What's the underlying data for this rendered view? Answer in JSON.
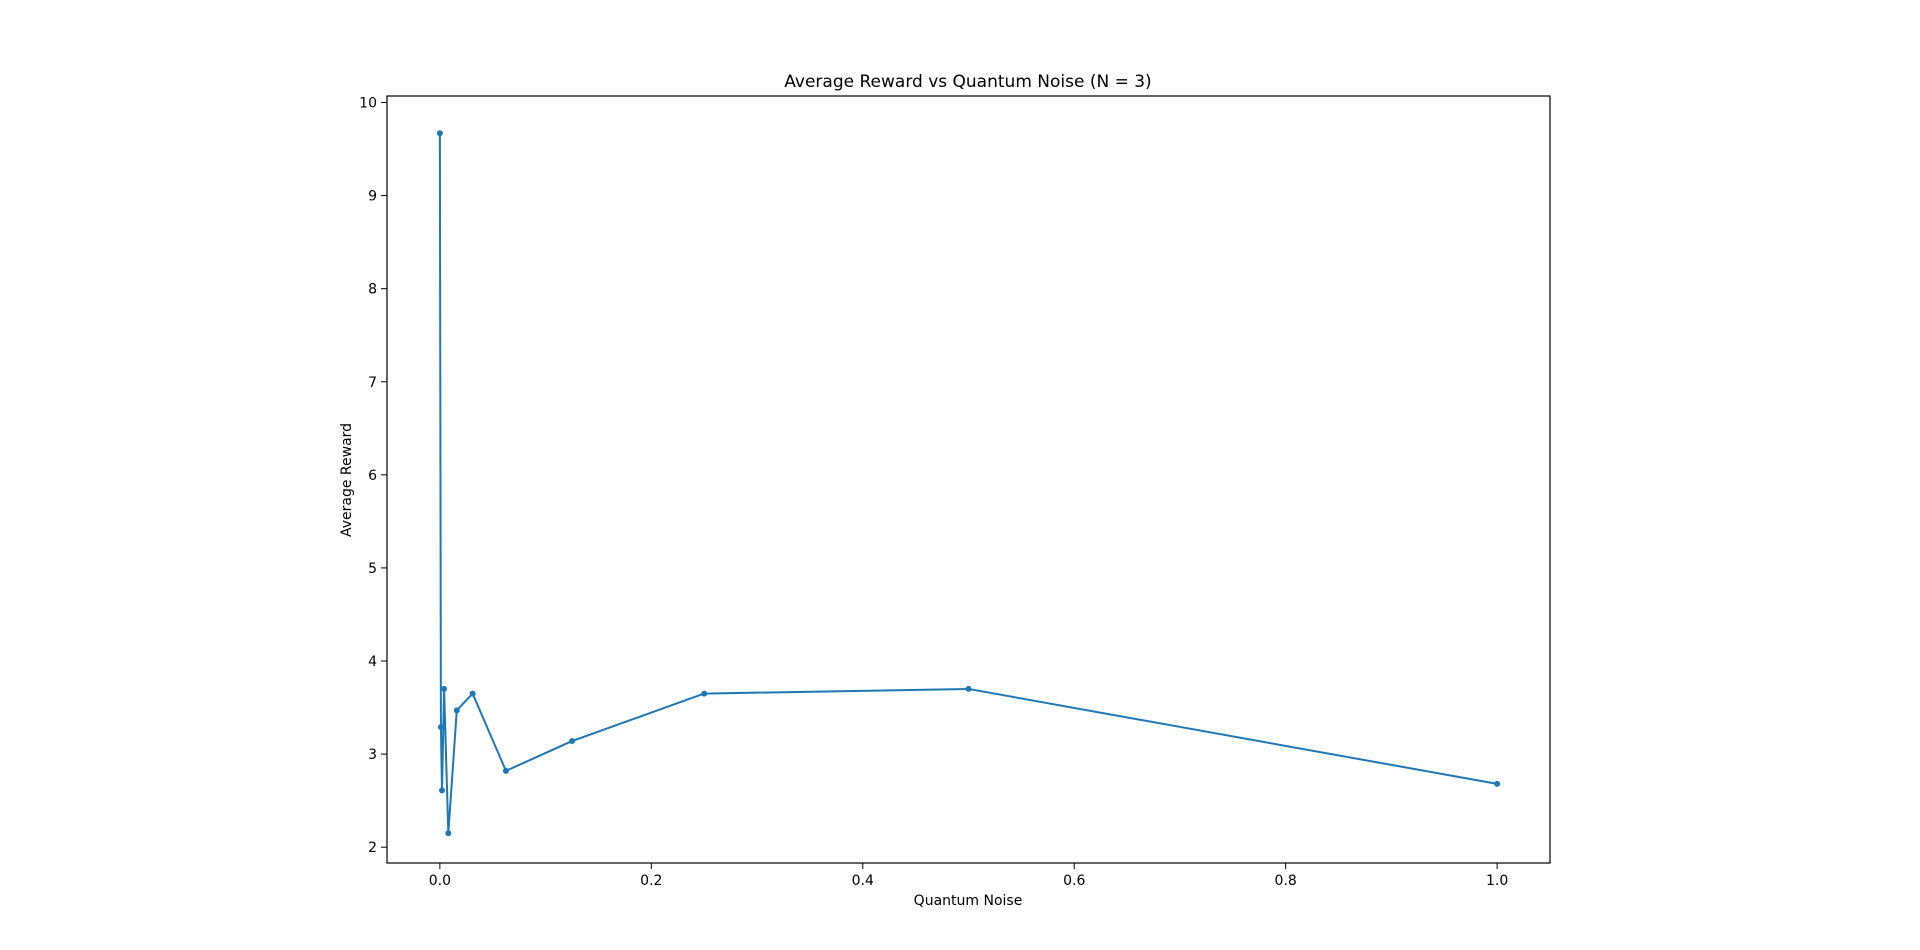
{
  "chart_data": {
    "type": "line",
    "title": "Average Reward vs Quantum Noise (N = 3)",
    "xlabel": "Quantum Noise",
    "ylabel": "Average Reward",
    "xlim": [
      -0.05,
      1.05
    ],
    "ylim": [
      1.83,
      10.07
    ],
    "x_ticks": [
      0.0,
      0.2,
      0.4,
      0.6,
      0.8,
      1.0
    ],
    "y_ticks": [
      2,
      3,
      4,
      5,
      6,
      7,
      8,
      9,
      10
    ],
    "x_tick_labels": [
      "0.0",
      "0.2",
      "0.4",
      "0.6",
      "0.8",
      "1.0"
    ],
    "y_tick_labels": [
      "2",
      "3",
      "4",
      "5",
      "6",
      "7",
      "8",
      "9",
      "10"
    ],
    "grid": false,
    "legend": "none",
    "series": [
      {
        "color": "#1f77b4",
        "marker": "circle",
        "x": [
          0.0,
          0.001,
          0.002,
          0.004,
          0.008,
          0.016,
          0.031,
          0.0625,
          0.125,
          0.25,
          0.5,
          1.0
        ],
        "y": [
          9.67,
          3.29,
          2.61,
          3.7,
          2.15,
          3.47,
          3.65,
          2.82,
          3.14,
          3.65,
          3.7,
          2.68
        ]
      }
    ]
  }
}
